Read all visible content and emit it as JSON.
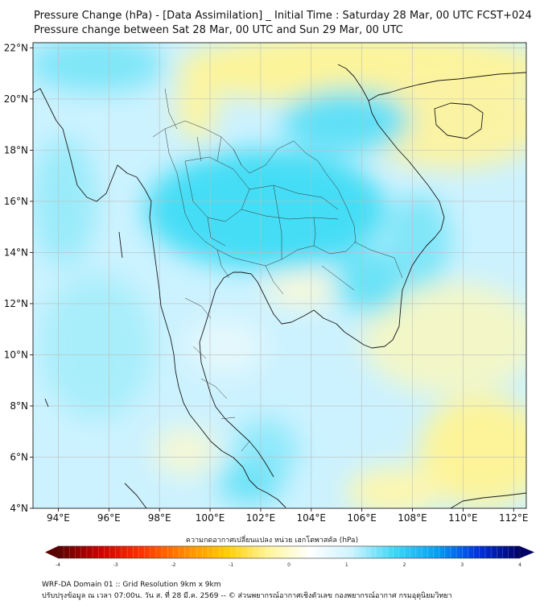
{
  "title_line1": "Pressure Change (hPa) - [Data Assimilation] _ Initial Time : Saturday 28 Mar, 00 UTC FCST+024",
  "title_line2": "Pressure change between Sat 28 Mar, 00 UTC and Sun 29 Mar, 00 UTC",
  "map": {
    "lat_labels": [
      "22°N",
      "20°N",
      "18°N",
      "16°N",
      "14°N",
      "12°N",
      "10°N",
      "8°N",
      "6°N",
      "4°N"
    ],
    "lon_labels": [
      "94°E",
      "96°E",
      "98°E",
      "100°E",
      "102°E",
      "104°E",
      "106°E",
      "108°E",
      "110°E",
      "112°E"
    ],
    "lat_values": [
      22,
      20,
      18,
      16,
      14,
      12,
      10,
      8,
      6,
      4
    ],
    "lon_values": [
      94,
      96,
      98,
      100,
      102,
      104,
      106,
      108,
      110,
      112
    ],
    "extent": {
      "lon_min": 93.0,
      "lon_max": 112.5,
      "lat_min": 4.0,
      "lat_max": 22.2
    },
    "colors": {
      "ocean_base": "#ccf2ff",
      "cyan": "#44ddf5",
      "yellow": "#fdf49a",
      "grid": "#bdbdbd",
      "coast": "#1a1a1a"
    }
  },
  "colorbar": {
    "label": "ความกดอากาศเปลี่ยนแปลง หน่วย เฮกโตพาสคัล (hPa)",
    "tick_labels": [
      "-4",
      "-3",
      "-2",
      "-1",
      "0",
      "1",
      "2",
      "3",
      "4"
    ],
    "min": -4,
    "max": 4,
    "colors": [
      "#5a0000",
      "#cc0000",
      "#ff3300",
      "#ff8800",
      "#ffcc00",
      "#fff59a",
      "#ffffff",
      "#cdf3ff",
      "#3fd6f5",
      "#0aa0f0",
      "#0033dd",
      "#000066"
    ]
  },
  "footer_line1": "WRF-DA Domain 01 :: Grid Resolution 9km x 9km",
  "footer_line2": "ปรับปรุงข้อมูล ณ เวลา 07:00น. วัน ส. ที่ 28 มี.ค. 2569 -- © ส่วนพยากรณ์อากาศเชิงตัวเลข กองพยากรณ์อากาศ กรมอุตุนิยมวิทยา"
}
